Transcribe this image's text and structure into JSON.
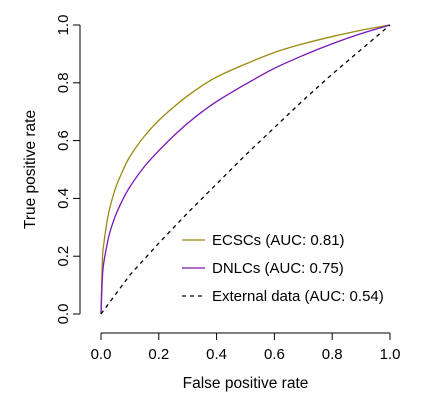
{
  "chart_data": {
    "type": "line",
    "xlabel": "False positive rate",
    "ylabel": "True positive rate",
    "xlim": [
      0,
      1
    ],
    "ylim": [
      0,
      1
    ],
    "x_ticks": [
      "0.0",
      "0.2",
      "0.4",
      "0.6",
      "0.8",
      "1.0"
    ],
    "y_ticks": [
      "0.0",
      "0.2",
      "0.4",
      "0.6",
      "0.8",
      "1.0"
    ],
    "grid": false,
    "legend_position": "bottom-right",
    "series": [
      {
        "name": "ECSCs (AUC: 0.81)",
        "color": "#9a8a10",
        "line_style": "solid",
        "x": [
          0,
          0.005,
          0.01,
          0.02,
          0.03,
          0.05,
          0.075,
          0.1,
          0.15,
          0.2,
          0.25,
          0.3,
          0.35,
          0.4,
          0.5,
          0.6,
          0.7,
          0.8,
          0.9,
          1.0
        ],
        "y": [
          0,
          0.19,
          0.245,
          0.315,
          0.365,
          0.435,
          0.495,
          0.545,
          0.615,
          0.67,
          0.715,
          0.755,
          0.79,
          0.82,
          0.865,
          0.905,
          0.935,
          0.96,
          0.982,
          1.0
        ]
      },
      {
        "name": "DNLCs (AUC: 0.75)",
        "color": "#7a16b8",
        "line_style": "solid",
        "x": [
          0,
          0.005,
          0.01,
          0.02,
          0.03,
          0.05,
          0.075,
          0.1,
          0.15,
          0.2,
          0.25,
          0.3,
          0.35,
          0.4,
          0.5,
          0.6,
          0.7,
          0.8,
          0.9,
          1.0
        ],
        "y": [
          0,
          0.13,
          0.18,
          0.235,
          0.28,
          0.34,
          0.395,
          0.44,
          0.51,
          0.565,
          0.615,
          0.66,
          0.7,
          0.735,
          0.795,
          0.85,
          0.895,
          0.935,
          0.97,
          1.0
        ]
      },
      {
        "name": "External data (AUC: 0.54)",
        "color": "#000000",
        "line_style": "dashed",
        "x": [
          0,
          0.1,
          0.2,
          0.3,
          0.4,
          0.5,
          0.6,
          0.7,
          0.8,
          0.9,
          1.0
        ],
        "y": [
          0,
          0.135,
          0.245,
          0.35,
          0.45,
          0.55,
          0.645,
          0.74,
          0.83,
          0.915,
          1.0
        ]
      }
    ]
  }
}
